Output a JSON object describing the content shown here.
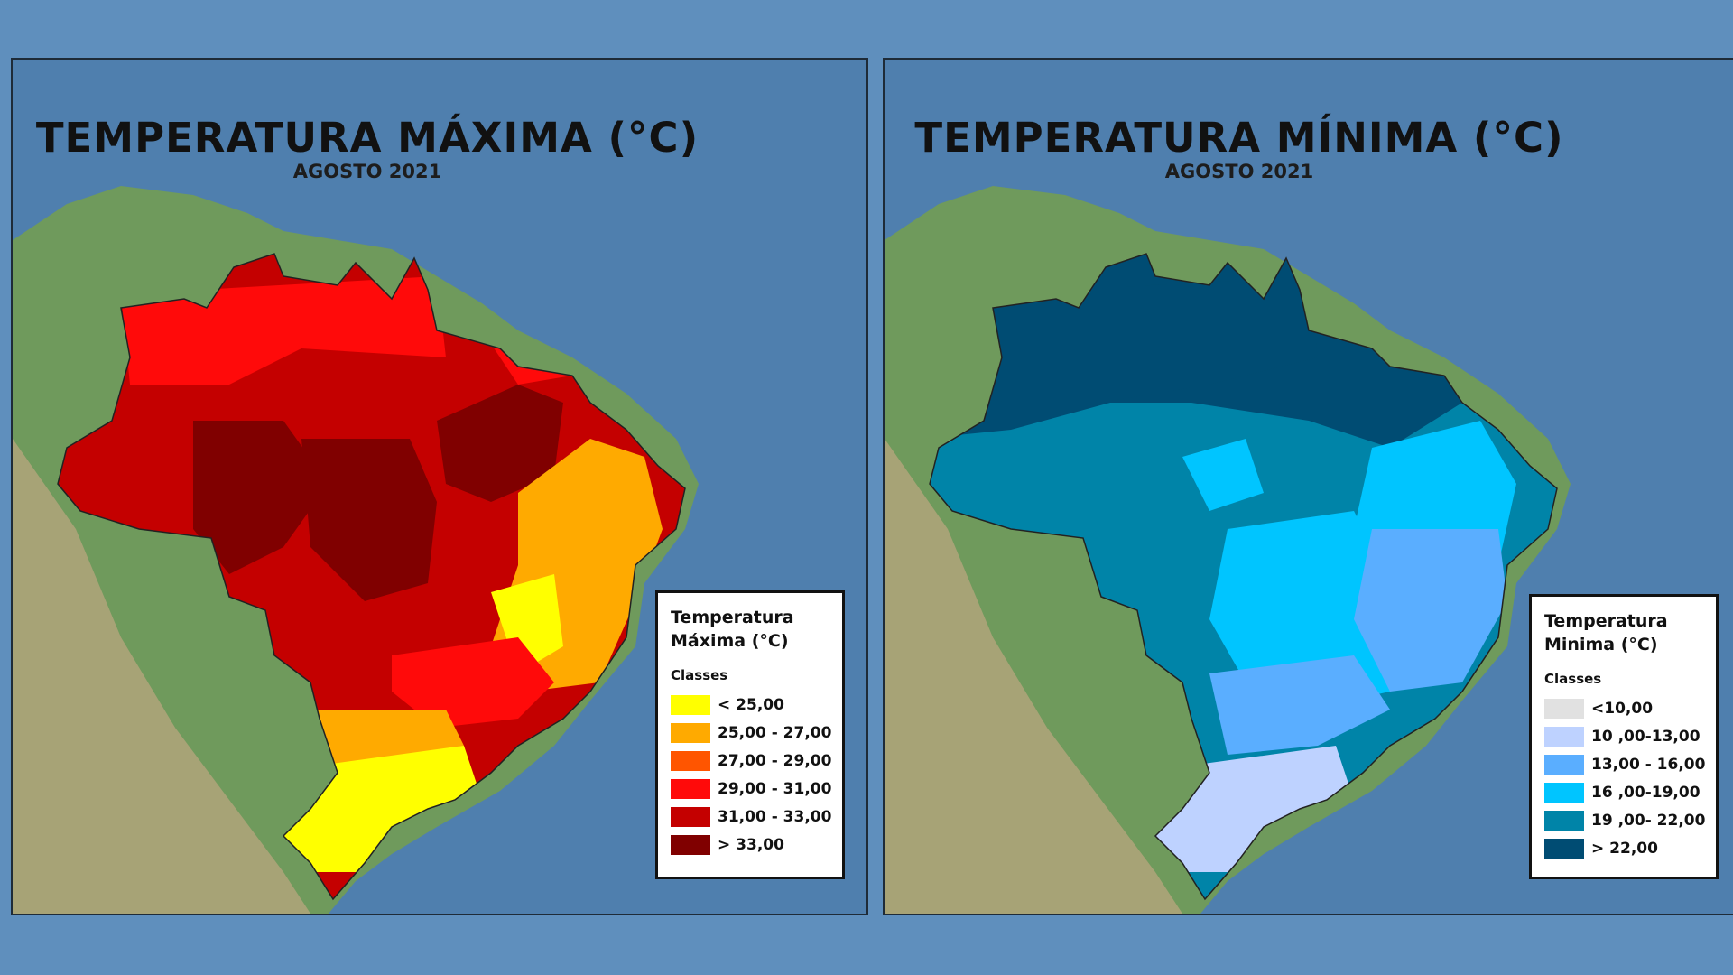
{
  "maps": {
    "max": {
      "title": "TEMPERATURA MÁXIMA (°C)",
      "subtitle": "AGOSTO 2021",
      "legend_title_line1": "Temperatura",
      "legend_title_line2": "Máxima (°C)",
      "legend_subtitle": "Classes",
      "classes": [
        {
          "label": "< 25,00",
          "color": "#ffff00"
        },
        {
          "label": "25,00 - 27,00",
          "color": "#ffaa00"
        },
        {
          "label": "27,00 - 29,00",
          "color": "#ff5500"
        },
        {
          "label": "29,00 - 31,00",
          "color": "#ff0a0a"
        },
        {
          "label": "31,00 - 33,00",
          "color": "#c40000"
        },
        {
          "label": "> 33,00",
          "color": "#800000"
        }
      ]
    },
    "min": {
      "title": "TEMPERATURA MÍNIMA (°C)",
      "subtitle": "AGOSTO 2021",
      "legend_title_line1": "Temperatura",
      "legend_title_line2": "Minima (°C)",
      "legend_subtitle": "Classes",
      "classes": [
        {
          "label": "<10,00",
          "color": "#e1e1e1"
        },
        {
          "label": "10 ,00-13,00",
          "color": "#bed2ff"
        },
        {
          "label": "13,00 - 16,00",
          "color": "#5aaeff"
        },
        {
          "label": "16 ,00-19,00",
          "color": "#00c5ff"
        },
        {
          "label": "19 ,00- 22,00",
          "color": "#0084a8"
        },
        {
          "label": "> 22,00",
          "color": "#004c73"
        }
      ]
    }
  },
  "colors": {
    "ocean": "#4f7fae",
    "land": "#6f9a5c",
    "background": "#5f8fbd"
  }
}
